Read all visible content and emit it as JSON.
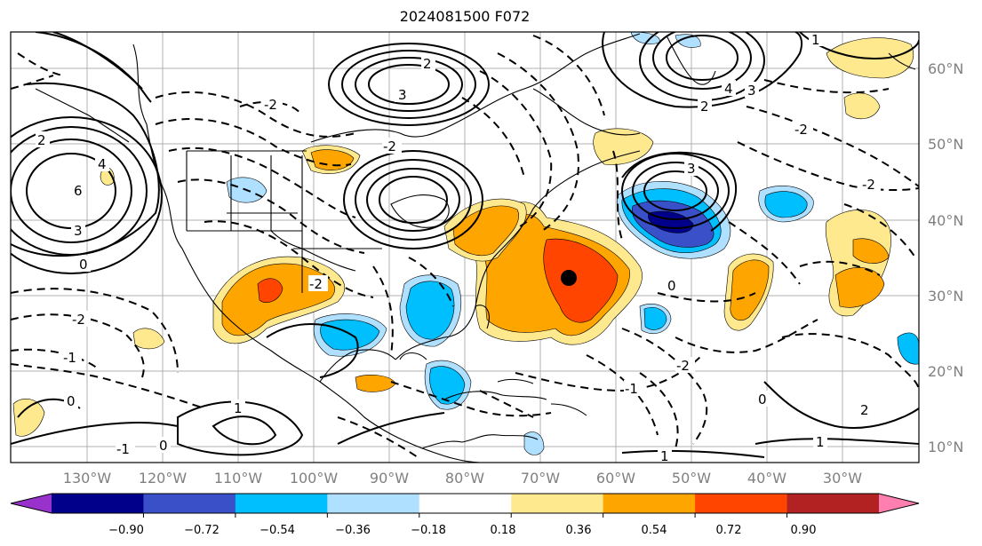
{
  "title": "2024081500 F072",
  "map": {
    "lat_labels": [
      "60°N",
      "50°N",
      "40°N",
      "30°N",
      "20°N",
      "10°N"
    ],
    "lon_labels": [
      "130°W",
      "120°W",
      "110°W",
      "100°W",
      "90°W",
      "80°W",
      "70°W",
      "60°W",
      "50°W",
      "40°W",
      "30°W"
    ],
    "contour_labels": [
      {
        "text": "3"
      },
      {
        "text": "2"
      },
      {
        "text": "3"
      },
      {
        "text": "2"
      },
      {
        "text": "4"
      },
      {
        "text": "6"
      },
      {
        "text": "3"
      },
      {
        "text": "2"
      },
      {
        "text": "4"
      },
      {
        "text": "3"
      },
      {
        "text": "-2"
      },
      {
        "text": "-2"
      },
      {
        "text": "-2"
      },
      {
        "text": "-2"
      },
      {
        "text": "-2"
      },
      {
        "text": "-2"
      },
      {
        "text": "-1"
      },
      {
        "text": "-1"
      },
      {
        "text": "-1"
      },
      {
        "text": "0"
      },
      {
        "text": "0"
      },
      {
        "text": "0"
      },
      {
        "text": "0"
      },
      {
        "text": "1"
      },
      {
        "text": "1"
      },
      {
        "text": "1"
      },
      {
        "text": "2"
      },
      {
        "text": "-2"
      },
      {
        "text": "0"
      },
      {
        "text": "1"
      }
    ],
    "marker": "storm-center"
  },
  "colorbar": {
    "ticks": [
      "−0.90",
      "−0.72",
      "−0.54",
      "−0.36",
      "−0.18",
      "0.18",
      "0.36",
      "0.54",
      "0.72",
      "0.90"
    ],
    "colors": [
      "#9932cc",
      "#00008b",
      "#3a50c9",
      "#00bfff",
      "#b0e0ff",
      "#ffffff",
      "#ffe98f",
      "#ffa500",
      "#ff4500",
      "#b22222",
      "#ff80b0"
    ]
  }
}
